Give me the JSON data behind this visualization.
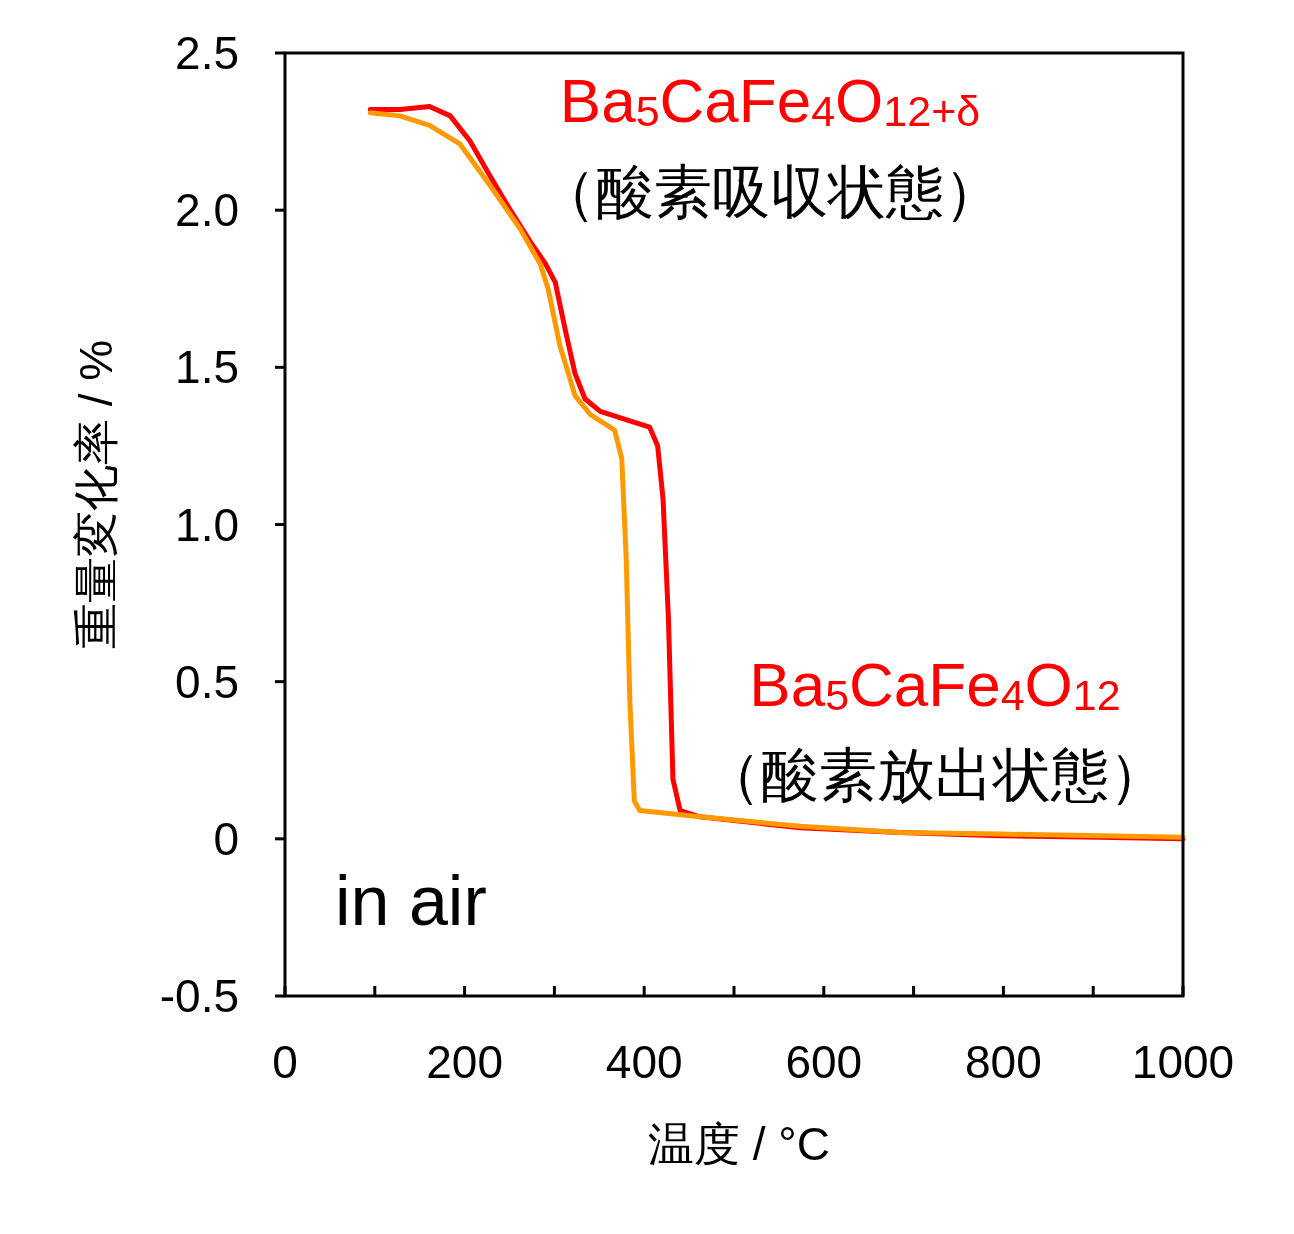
{
  "chart_data": {
    "type": "line",
    "xlabel": "温度 / °C",
    "ylabel": "重量変化率 / %",
    "xlim": [
      0,
      1000
    ],
    "xticks": [
      0,
      {
        "value": 100,
        "label": null
      },
      200,
      {
        "value": 300,
        "label": null
      },
      400,
      {
        "value": 500,
        "label": null
      },
      600,
      {
        "value": 700,
        "label": null
      },
      800,
      {
        "value": 900,
        "label": null
      },
      1000
    ],
    "ylim": [
      -0.5,
      2.5
    ],
    "yticks": [
      -0.5,
      0,
      0.5,
      {
        "value": 1,
        "label": "1.0"
      },
      1.5,
      {
        "value": 2,
        "label": "2.0"
      },
      2.5
    ],
    "grid": false,
    "marker": "none",
    "line_style": "solid",
    "series": [
      {
        "color": "#ff0000",
        "x": [
          95,
          128,
          161,
          184,
          206,
          228,
          251,
          273,
          290,
          301,
          312,
          323,
          334,
          351,
          384,
          406,
          415,
          421,
          427,
          432,
          440,
          462,
          574,
          685,
          796,
          908,
          1000
        ],
        "values": [
          2.32,
          2.32,
          2.33,
          2.3,
          2.22,
          2.11,
          2.0,
          1.9,
          1.83,
          1.77,
          1.62,
          1.48,
          1.4,
          1.36,
          1.33,
          1.31,
          1.25,
          1.08,
          0.7,
          0.19,
          0.09,
          0.07,
          0.035,
          0.02,
          0.01,
          0.005,
          0
        ]
      },
      {
        "color": "#ff9900",
        "x": [
          95,
          128,
          161,
          195,
          228,
          262,
          284,
          293,
          306,
          323,
          340,
          367,
          375,
          380,
          384,
          389,
          395,
          462,
          574,
          685,
          796,
          908,
          1000
        ],
        "values": [
          2.31,
          2.3,
          2.27,
          2.21,
          2.08,
          1.94,
          1.83,
          1.75,
          1.57,
          1.41,
          1.35,
          1.3,
          1.21,
          0.89,
          0.44,
          0.12,
          0.09,
          0.07,
          0.04,
          0.02,
          0.015,
          0.01,
          0.005
        ]
      }
    ],
    "annotations": [
      "Ba$_{5}$CaFe$_{4}$O$_{12+δ}$",
      "（酸素吸収状態）",
      "Ba$_{5}$CaFe$_{4}$O$_{12}$",
      "（酸素放出状態）",
      "in air"
    ]
  }
}
